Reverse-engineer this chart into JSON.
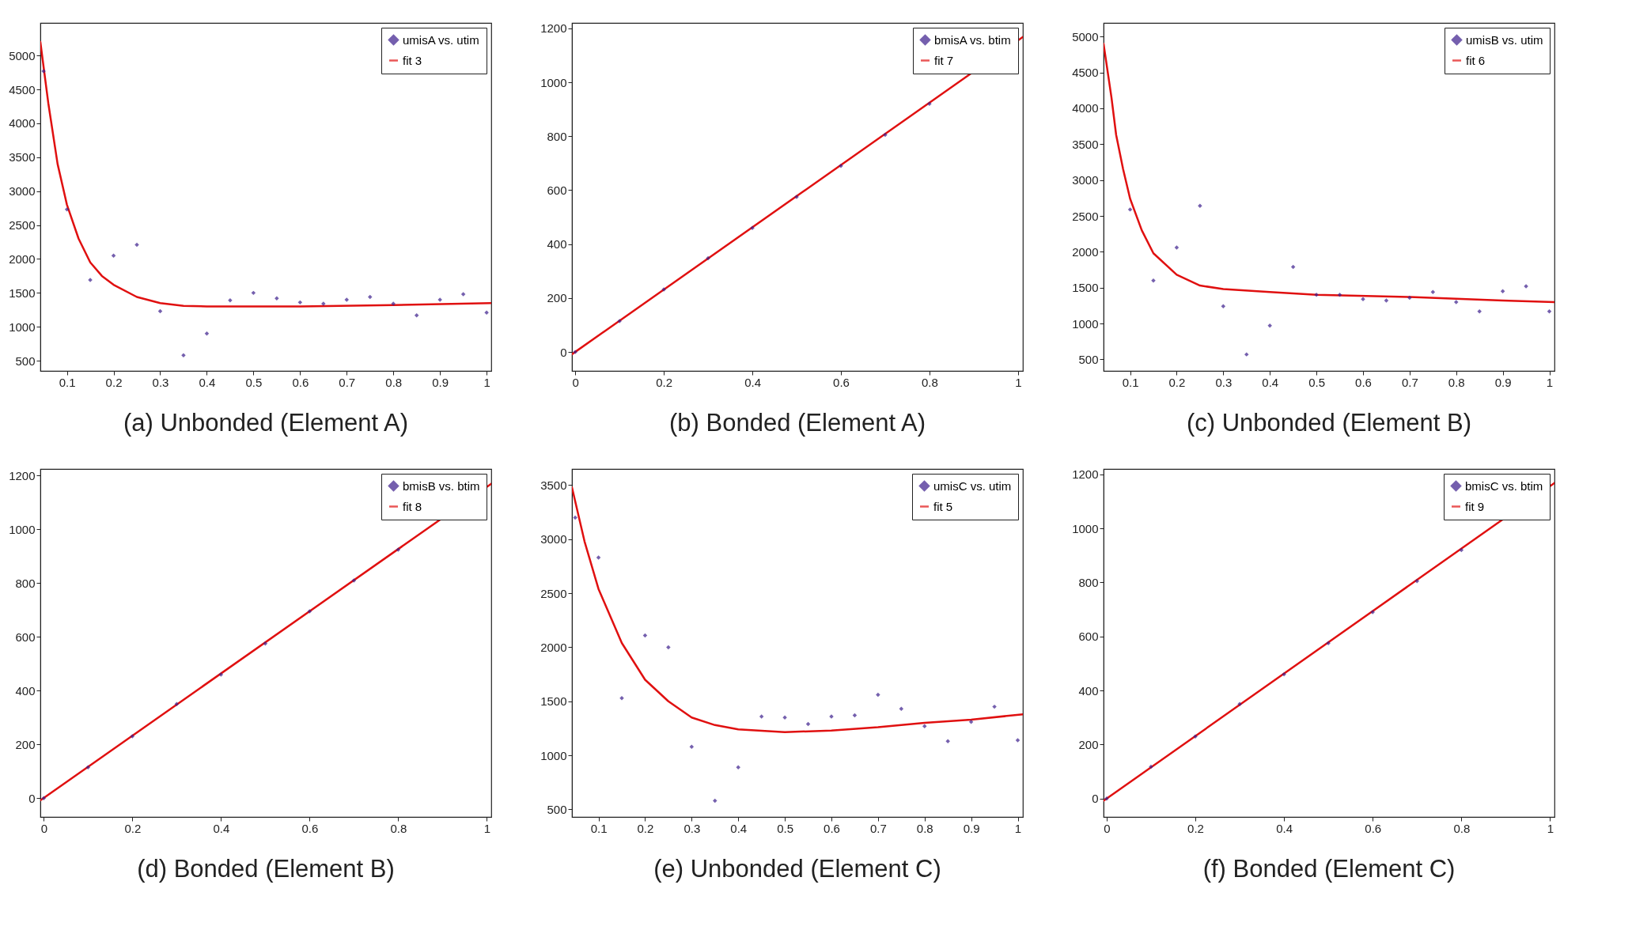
{
  "chart_data": [
    {
      "type": "scatter",
      "title": "(a) Unbonded (Element A)",
      "xlim": [
        0.043,
        1.01
      ],
      "xticks": [
        0.1,
        0.2,
        0.3,
        0.4,
        0.5,
        0.6,
        0.7,
        0.8,
        0.9,
        1
      ],
      "ylim": [
        350,
        5480
      ],
      "yticks": [
        500,
        1000,
        1500,
        2000,
        2500,
        3000,
        3500,
        4000,
        4500,
        5000
      ],
      "legend": "top right",
      "grid": false,
      "series": [
        {
          "name": "umisA vs. utim",
          "marker": "diamond",
          "color": "#3b1c8c",
          "x": [
            0.05,
            0.1,
            0.15,
            0.2,
            0.25,
            0.3,
            0.35,
            0.4,
            0.45,
            0.5,
            0.55,
            0.6,
            0.65,
            0.7,
            0.75,
            0.8,
            0.85,
            0.9,
            0.95,
            1
          ],
          "values": [
            4770,
            2730,
            1690,
            2050,
            2210,
            1230,
            580,
            900,
            1390,
            1500,
            1420,
            1360,
            1340,
            1400,
            1440,
            1340,
            1170,
            1400,
            1480,
            1210
          ]
        },
        {
          "name": "fit 3",
          "type": "line",
          "color": "#e01010",
          "x": [
            0.043,
            0.06,
            0.08,
            0.1,
            0.125,
            0.15,
            0.175,
            0.2,
            0.25,
            0.3,
            0.35,
            0.4,
            0.6,
            0.8,
            1.01
          ],
          "values": [
            5200,
            4300,
            3400,
            2800,
            2300,
            1950,
            1750,
            1620,
            1440,
            1350,
            1310,
            1300,
            1300,
            1320,
            1350
          ]
        }
      ]
    },
    {
      "type": "scatter",
      "title": "(b) Bonded (Element A)",
      "xlim": [
        -0.0075,
        1.011
      ],
      "xticks": [
        0,
        0.2,
        0.4,
        0.6,
        0.8,
        1
      ],
      "ylim": [
        -70,
        1220
      ],
      "yticks": [
        0,
        200,
        400,
        600,
        800,
        1000,
        1200
      ],
      "legend": "top right",
      "grid": false,
      "series": [
        {
          "name": "bmisA vs. btim",
          "marker": "diamond",
          "color": "#3b1c8c",
          "x": [
            0,
            0.1,
            0.2,
            0.3,
            0.4,
            0.5,
            0.6,
            0.7,
            0.8
          ],
          "values": [
            0,
            115,
            232,
            348,
            460,
            575,
            690,
            805,
            920
          ]
        },
        {
          "name": "fit 7",
          "type": "line",
          "color": "#e01010",
          "x": [
            -0.0075,
            1.011
          ],
          "values": [
            -8,
            1168
          ]
        }
      ]
    },
    {
      "type": "scatter",
      "title": "(c) Unbonded (Element B)",
      "xlim": [
        0.043,
        1.011
      ],
      "xticks": [
        0.1,
        0.2,
        0.3,
        0.4,
        0.5,
        0.6,
        0.7,
        0.8,
        0.9,
        1
      ],
      "ylim": [
        340,
        5190
      ],
      "yticks": [
        500,
        1000,
        1500,
        2000,
        2500,
        3000,
        3500,
        4000,
        4500,
        5000
      ],
      "legend": "top right",
      "grid": false,
      "series": [
        {
          "name": "umisB vs. utim",
          "marker": "diamond",
          "color": "#3b1c8c",
          "x": [
            0.1,
            0.15,
            0.2,
            0.25,
            0.3,
            0.35,
            0.4,
            0.45,
            0.5,
            0.55,
            0.6,
            0.65,
            0.7,
            0.75,
            0.8,
            0.85,
            0.9,
            0.95,
            1
          ],
          "values": [
            2590,
            1600,
            2060,
            2640,
            1240,
            570,
            970,
            1790,
            1400,
            1400,
            1340,
            1320,
            1360,
            1440,
            1300,
            1170,
            1450,
            1520,
            1170
          ]
        },
        {
          "name": "fit 6",
          "type": "line",
          "color": "#e01010",
          "x": [
            0.043,
            0.06,
            0.07,
            0.085,
            0.1,
            0.125,
            0.15,
            0.2,
            0.25,
            0.3,
            0.4,
            0.5,
            0.7,
            0.9,
            1.011
          ],
          "values": [
            4900,
            4150,
            3630,
            3150,
            2740,
            2300,
            1980,
            1680,
            1530,
            1480,
            1440,
            1400,
            1370,
            1320,
            1300
          ]
        }
      ]
    },
    {
      "type": "scatter",
      "title": "(d) Bonded (Element B)",
      "xlim": [
        -0.0077,
        1.01
      ],
      "xticks": [
        0,
        0.2,
        0.4,
        0.6,
        0.8,
        1
      ],
      "ylim": [
        -70,
        1225
      ],
      "yticks": [
        0,
        200,
        400,
        600,
        800,
        1000,
        1200
      ],
      "legend": "top right",
      "grid": false,
      "series": [
        {
          "name": "bmisB vs. btim",
          "marker": "diamond",
          "color": "#3b1c8c",
          "x": [
            0,
            0.1,
            0.2,
            0.3,
            0.4,
            0.5,
            0.6,
            0.7,
            0.8
          ],
          "values": [
            0,
            115,
            230,
            350,
            460,
            575,
            695,
            810,
            925
          ]
        },
        {
          "name": "fit 8",
          "type": "line",
          "color": "#e01010",
          "x": [
            -0.0077,
            1.01
          ],
          "values": [
            -8,
            1170
          ]
        }
      ]
    },
    {
      "type": "scatter",
      "title": "(e) Unbonded (Element C)",
      "xlim": [
        0.043,
        1.011
      ],
      "xticks": [
        0.1,
        0.2,
        0.3,
        0.4,
        0.5,
        0.6,
        0.7,
        0.8,
        0.9,
        1
      ],
      "ylim": [
        430,
        3650
      ],
      "yticks": [
        500,
        1000,
        1500,
        2000,
        2500,
        3000,
        3500
      ],
      "legend": "top right",
      "grid": false,
      "series": [
        {
          "name": "umisC vs. utim",
          "marker": "diamond",
          "color": "#3b1c8c",
          "x": [
            0.05,
            0.1,
            0.15,
            0.2,
            0.25,
            0.3,
            0.35,
            0.4,
            0.45,
            0.5,
            0.55,
            0.6,
            0.65,
            0.7,
            0.75,
            0.8,
            0.85,
            0.9,
            0.95,
            1
          ],
          "values": [
            3200,
            2830,
            1530,
            2110,
            2000,
            1080,
            580,
            890,
            1360,
            1350,
            1290,
            1360,
            1370,
            1560,
            1430,
            1270,
            1130,
            1310,
            1450,
            1140
          ]
        },
        {
          "name": "fit 5",
          "type": "line",
          "color": "#e01010",
          "x": [
            0.043,
            0.07,
            0.1,
            0.15,
            0.2,
            0.25,
            0.3,
            0.35,
            0.4,
            0.5,
            0.6,
            0.7,
            0.8,
            0.9,
            1.011
          ],
          "values": [
            3480,
            2980,
            2540,
            2040,
            1700,
            1500,
            1350,
            1280,
            1240,
            1215,
            1230,
            1260,
            1300,
            1330,
            1380
          ]
        }
      ]
    },
    {
      "type": "scatter",
      "title": "(f) Bonded (Element C)",
      "xlim": [
        -0.007,
        1.01
      ],
      "xticks": [
        0,
        0.2,
        0.4,
        0.6,
        0.8,
        1
      ],
      "ylim": [
        -68,
        1220
      ],
      "yticks": [
        0,
        200,
        400,
        600,
        800,
        1000,
        1200
      ],
      "legend": "top right",
      "grid": false,
      "series": [
        {
          "name": "bmisC vs. btim",
          "marker": "diamond",
          "color": "#3b1c8c",
          "x": [
            0,
            0.1,
            0.2,
            0.3,
            0.4,
            0.5,
            0.6,
            0.7,
            0.8
          ],
          "values": [
            0,
            118,
            230,
            350,
            460,
            575,
            690,
            805,
            920
          ]
        },
        {
          "name": "fit 9",
          "type": "line",
          "color": "#e01010",
          "x": [
            -0.007,
            1.01
          ],
          "values": [
            -8,
            1168
          ]
        }
      ]
    }
  ]
}
